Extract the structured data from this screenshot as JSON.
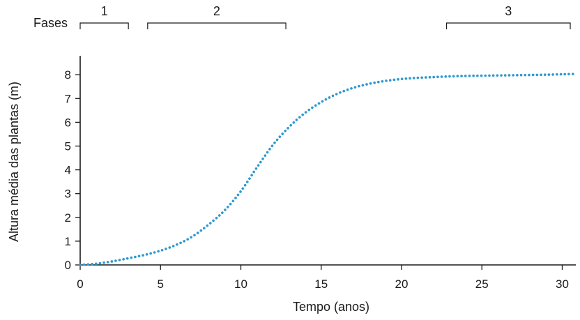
{
  "chart_data": {
    "type": "line",
    "xlabel": "Tempo (anos)",
    "ylabel": "Altura média das plantas (m)",
    "xlim": [
      0,
      31
    ],
    "ylim": [
      0,
      8.7
    ],
    "xticks": [
      0,
      5,
      10,
      15,
      20,
      25,
      30
    ],
    "yticks": [
      0,
      1,
      2,
      3,
      4,
      5,
      6,
      7,
      8
    ],
    "phases_title": "Fases",
    "phases": [
      {
        "label": "1",
        "start": 0,
        "end": 3
      },
      {
        "label": "2",
        "start": 4.2,
        "end": 12.8
      },
      {
        "label": "3",
        "start": 22.8,
        "end": 30.5
      }
    ],
    "series": [
      {
        "color": "#2e9ad0",
        "style": "dotted",
        "x": [
          0,
          1,
          2,
          3,
          4,
          5,
          6,
          7,
          8,
          9,
          10,
          11,
          12,
          13,
          14,
          15,
          16,
          17,
          18,
          19,
          20,
          21,
          22,
          23,
          24,
          25,
          26,
          27,
          28,
          29,
          30,
          30.7
        ],
        "y": [
          0,
          0.05,
          0.15,
          0.28,
          0.42,
          0.6,
          0.85,
          1.2,
          1.7,
          2.3,
          3.1,
          4.1,
          5.05,
          5.8,
          6.4,
          6.85,
          7.2,
          7.45,
          7.62,
          7.74,
          7.82,
          7.87,
          7.9,
          7.93,
          7.95,
          7.96,
          7.97,
          7.98,
          7.99,
          8.0,
          8.02,
          8.03
        ]
      }
    ]
  }
}
